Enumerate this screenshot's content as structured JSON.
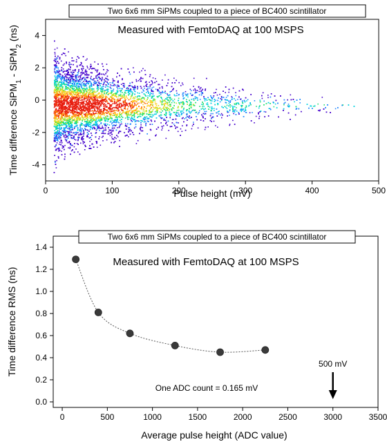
{
  "chart_data": [
    {
      "type": "heatmap",
      "title": "Two 6x6 mm SiPMs coupled to a piece of  BC400 scintillator",
      "subtitle": "Measured with FemtoDAQ at 100 MSPS",
      "xlabel": "Pulse height (mV)",
      "ylabel_main": "Time difference SiPM",
      "ylabel_sub1": "1",
      "ylabel_mid": " - SiPM",
      "ylabel_sub2": "2",
      "ylabel_unit": " (ns)",
      "xlim": [
        0,
        500
      ],
      "ylim": [
        -5,
        5
      ],
      "xticks": [
        0,
        100,
        200,
        300,
        400,
        500
      ],
      "yticks": [
        -4,
        -2,
        0,
        2,
        4
      ],
      "xtick_labels": [
        "0",
        "100",
        "200",
        "300",
        "400",
        "500"
      ],
      "ytick_labels": [
        "-4",
        "-2",
        "0",
        "2",
        "4"
      ],
      "grid": false,
      "distribution": {
        "x_start": 12,
        "x_end": 480,
        "center": -0.3,
        "envelope": [
          [
            12,
            4.3
          ],
          [
            30,
            3.3
          ],
          [
            100,
            2.5
          ],
          [
            200,
            1.9
          ],
          [
            300,
            1.3
          ],
          [
            400,
            0.7
          ],
          [
            470,
            0.3
          ]
        ],
        "peak_x": 60,
        "colormap": [
          "#4400cc",
          "#2288ff",
          "#00d2e0",
          "#22e070",
          "#b8e830",
          "#ffd020",
          "#ff8010",
          "#e81e10"
        ]
      }
    },
    {
      "type": "scatter",
      "title": "Two 6x6 mm SiPMs coupled to a piece of  BC400 scintillator",
      "subtitle": "Measured with FemtoDAQ at 100 MSPS",
      "xlabel": "Average pulse height (ADC value)",
      "ylabel": "Time difference RMS (ns)",
      "xlim": [
        -100,
        3500
      ],
      "ylim": [
        -0.05,
        1.5
      ],
      "xticks": [
        0,
        500,
        1000,
        1500,
        2000,
        2500,
        3000,
        3500
      ],
      "yticks": [
        0.0,
        0.2,
        0.4,
        0.6,
        0.8,
        1.0,
        1.2,
        1.4
      ],
      "xtick_labels": [
        "0",
        "500",
        "1000",
        "1500",
        "2000",
        "2500",
        "3000",
        "3500"
      ],
      "ytick_labels": [
        "0.0",
        "0.2",
        "0.4",
        "0.6",
        "0.8",
        "1.0",
        "1.2",
        "1.4"
      ],
      "grid": false,
      "x": [
        150,
        400,
        750,
        1250,
        1750,
        2250
      ],
      "y": [
        1.29,
        0.81,
        0.62,
        0.51,
        0.45,
        0.47
      ],
      "annotations": {
        "marker_label": "500 mV",
        "marker_x": 3000,
        "adc_note": "One ADC count = 0.165 mV"
      }
    }
  ]
}
